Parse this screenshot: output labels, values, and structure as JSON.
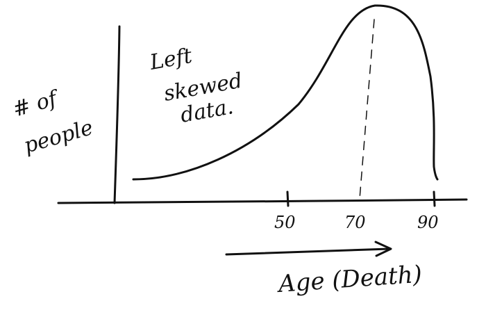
{
  "y_axis_label": [
    "# of",
    "people"
  ],
  "annotation": [
    "Left",
    "skewed",
    "data."
  ],
  "x_ticks": [
    {
      "label": "50",
      "value": 50
    },
    {
      "label": "70",
      "value": 70
    },
    {
      "label": "90",
      "value": 90
    }
  ],
  "x_axis_label": "Age (Death)",
  "ink_color": "#111111",
  "background_color": "#ffffff"
}
